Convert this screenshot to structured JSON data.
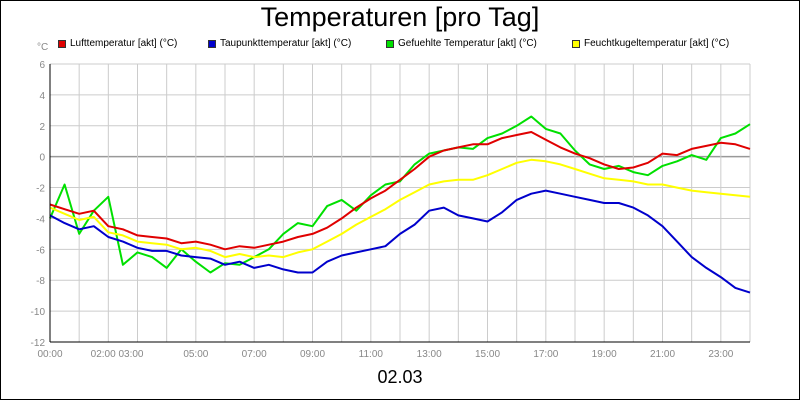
{
  "title": "Temperaturen [pro Tag]",
  "unit_label": "°C",
  "date_label": "02.03",
  "legend": [
    {
      "label": "Lufttemperatur [akt] (°C)",
      "color": "#e00000"
    },
    {
      "label": "Taupunkttemperatur [akt] (°C)",
      "color": "#0000cc"
    },
    {
      "label": "Gefuehlte Temperatur [akt] (°C)",
      "color": "#00e000"
    },
    {
      "label": "Feuchtkugeltemperatur [akt] (°C)",
      "color": "#ffff00"
    }
  ],
  "chart_data": {
    "type": "line",
    "xlabel": "",
    "ylabel": "°C",
    "xlim": [
      0,
      24
    ],
    "ylim": [
      -12,
      6
    ],
    "grid": true,
    "legend_position": "top",
    "y_ticks": [
      "-12",
      "-10",
      "-8",
      "-6",
      "-4",
      "-2",
      "0",
      "2",
      "4",
      "6"
    ],
    "x_tick_labels": [
      {
        "hour": 0,
        "label": "00:00"
      },
      {
        "hour": 2.3,
        "label": "02:00 03:00"
      },
      {
        "hour": 5,
        "label": "05:00"
      },
      {
        "hour": 7,
        "label": "07:00"
      },
      {
        "hour": 9,
        "label": "09:00"
      },
      {
        "hour": 11,
        "label": "11:00"
      },
      {
        "hour": 13,
        "label": "13:00"
      },
      {
        "hour": 15,
        "label": "15:00"
      },
      {
        "hour": 17,
        "label": "17:00"
      },
      {
        "hour": 19,
        "label": "19:00"
      },
      {
        "hour": 21,
        "label": "21:00"
      },
      {
        "hour": 23,
        "label": "23:00"
      }
    ],
    "series": [
      {
        "name": "Lufttemperatur [akt] (°C)",
        "color": "#e00000",
        "x": [
          0,
          0.5,
          1,
          1.5,
          2,
          2.5,
          3,
          3.5,
          4,
          4.5,
          5,
          5.5,
          6,
          6.5,
          7,
          7.5,
          8,
          8.5,
          9,
          9.5,
          10,
          10.5,
          11,
          11.5,
          12,
          12.5,
          13,
          13.5,
          14,
          14.5,
          15,
          15.5,
          16,
          16.5,
          17,
          17.5,
          18,
          18.5,
          19,
          19.5,
          20,
          20.5,
          21,
          21.5,
          22,
          22.5,
          23,
          23.5,
          24
        ],
        "values": [
          -3.1,
          -3.4,
          -3.7,
          -3.5,
          -4.5,
          -4.7,
          -5.1,
          -5.2,
          -5.3,
          -5.6,
          -5.5,
          -5.7,
          -6.0,
          -5.8,
          -5.9,
          -5.7,
          -5.5,
          -5.2,
          -5.0,
          -4.6,
          -4.0,
          -3.3,
          -2.7,
          -2.2,
          -1.5,
          -0.8,
          0.0,
          0.4,
          0.6,
          0.8,
          0.8,
          1.2,
          1.4,
          1.6,
          1.1,
          0.6,
          0.2,
          -0.1,
          -0.5,
          -0.8,
          -0.7,
          -0.4,
          0.2,
          0.1,
          0.5,
          0.7,
          0.9,
          0.8,
          0.5
        ]
      },
      {
        "name": "Taupunkttemperatur [akt] (°C)",
        "color": "#0000cc",
        "x": [
          0,
          0.5,
          1,
          1.5,
          2,
          2.5,
          3,
          3.5,
          4,
          4.5,
          5,
          5.5,
          6,
          6.5,
          7,
          7.5,
          8,
          8.5,
          9,
          9.5,
          10,
          10.5,
          11,
          11.5,
          12,
          12.5,
          13,
          13.5,
          14,
          14.5,
          15,
          15.5,
          16,
          16.5,
          17,
          17.5,
          18,
          18.5,
          19,
          19.5,
          20,
          20.5,
          21,
          21.5,
          22,
          22.5,
          23,
          23.5,
          24
        ],
        "values": [
          -3.8,
          -4.3,
          -4.7,
          -4.5,
          -5.2,
          -5.5,
          -5.9,
          -6.1,
          -6.1,
          -6.4,
          -6.5,
          -6.6,
          -7.0,
          -6.8,
          -7.2,
          -7.0,
          -7.3,
          -7.5,
          -7.5,
          -6.8,
          -6.4,
          -6.2,
          -6.0,
          -5.8,
          -5.0,
          -4.4,
          -3.5,
          -3.3,
          -3.8,
          -4.0,
          -4.2,
          -3.6,
          -2.8,
          -2.4,
          -2.2,
          -2.4,
          -2.6,
          -2.8,
          -3.0,
          -3.0,
          -3.3,
          -3.8,
          -4.5,
          -5.5,
          -6.5,
          -7.2,
          -7.8,
          -8.5,
          -8.8
        ]
      },
      {
        "name": "Gefuehlte Temperatur [akt] (°C)",
        "color": "#00e000",
        "x": [
          0,
          0.5,
          1,
          1.5,
          2,
          2.5,
          3,
          3.5,
          4,
          4.5,
          5,
          5.5,
          6,
          6.5,
          7,
          7.5,
          8,
          8.5,
          9,
          9.5,
          10,
          10.5,
          11,
          11.5,
          12,
          12.5,
          13,
          13.5,
          14,
          14.5,
          15,
          15.5,
          16,
          16.5,
          17,
          17.5,
          18,
          18.5,
          19,
          19.5,
          20,
          20.5,
          21,
          21.5,
          22,
          22.5,
          23,
          23.5,
          24
        ],
        "values": [
          -4.0,
          -1.8,
          -5.0,
          -3.5,
          -2.6,
          -7.0,
          -6.2,
          -6.5,
          -7.2,
          -6.0,
          -6.8,
          -7.5,
          -6.9,
          -7.0,
          -6.5,
          -6.0,
          -5.0,
          -4.3,
          -4.5,
          -3.2,
          -2.8,
          -3.5,
          -2.5,
          -1.8,
          -1.6,
          -0.5,
          0.2,
          0.4,
          0.6,
          0.5,
          1.2,
          1.5,
          2.0,
          2.6,
          1.8,
          1.5,
          0.4,
          -0.5,
          -0.8,
          -0.6,
          -1.0,
          -1.2,
          -0.6,
          -0.3,
          0.1,
          -0.2,
          1.2,
          1.5,
          2.1
        ]
      },
      {
        "name": "Feuchtkugeltemperatur [akt] (°C)",
        "color": "#ffff00",
        "x": [
          0,
          0.5,
          1,
          1.5,
          2,
          2.5,
          3,
          3.5,
          4,
          4.5,
          5,
          5.5,
          6,
          6.5,
          7,
          7.5,
          8,
          8.5,
          9,
          9.5,
          10,
          10.5,
          11,
          11.5,
          12,
          12.5,
          13,
          13.5,
          14,
          14.5,
          15,
          15.5,
          16,
          16.5,
          17,
          17.5,
          18,
          18.5,
          19,
          19.5,
          20,
          20.5,
          21,
          21.5,
          22,
          22.5,
          23,
          23.5,
          24
        ],
        "values": [
          -3.3,
          -3.7,
          -4.1,
          -3.9,
          -4.9,
          -5.1,
          -5.5,
          -5.6,
          -5.7,
          -6.0,
          -5.9,
          -6.1,
          -6.5,
          -6.3,
          -6.5,
          -6.4,
          -6.5,
          -6.2,
          -6.0,
          -5.5,
          -5.0,
          -4.4,
          -3.9,
          -3.4,
          -2.8,
          -2.3,
          -1.8,
          -1.6,
          -1.5,
          -1.5,
          -1.2,
          -0.8,
          -0.4,
          -0.2,
          -0.3,
          -0.5,
          -0.8,
          -1.1,
          -1.4,
          -1.5,
          -1.6,
          -1.8,
          -1.8,
          -2.0,
          -2.2,
          -2.3,
          -2.4,
          -2.5,
          -2.6
        ]
      }
    ]
  }
}
